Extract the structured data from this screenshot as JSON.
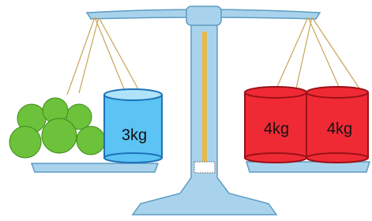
{
  "left_pan": {
    "weights": [
      {
        "label": "3kg"
      }
    ]
  },
  "right_pan": {
    "weights": [
      {
        "label": "4kg"
      },
      {
        "label": "4kg"
      }
    ]
  }
}
